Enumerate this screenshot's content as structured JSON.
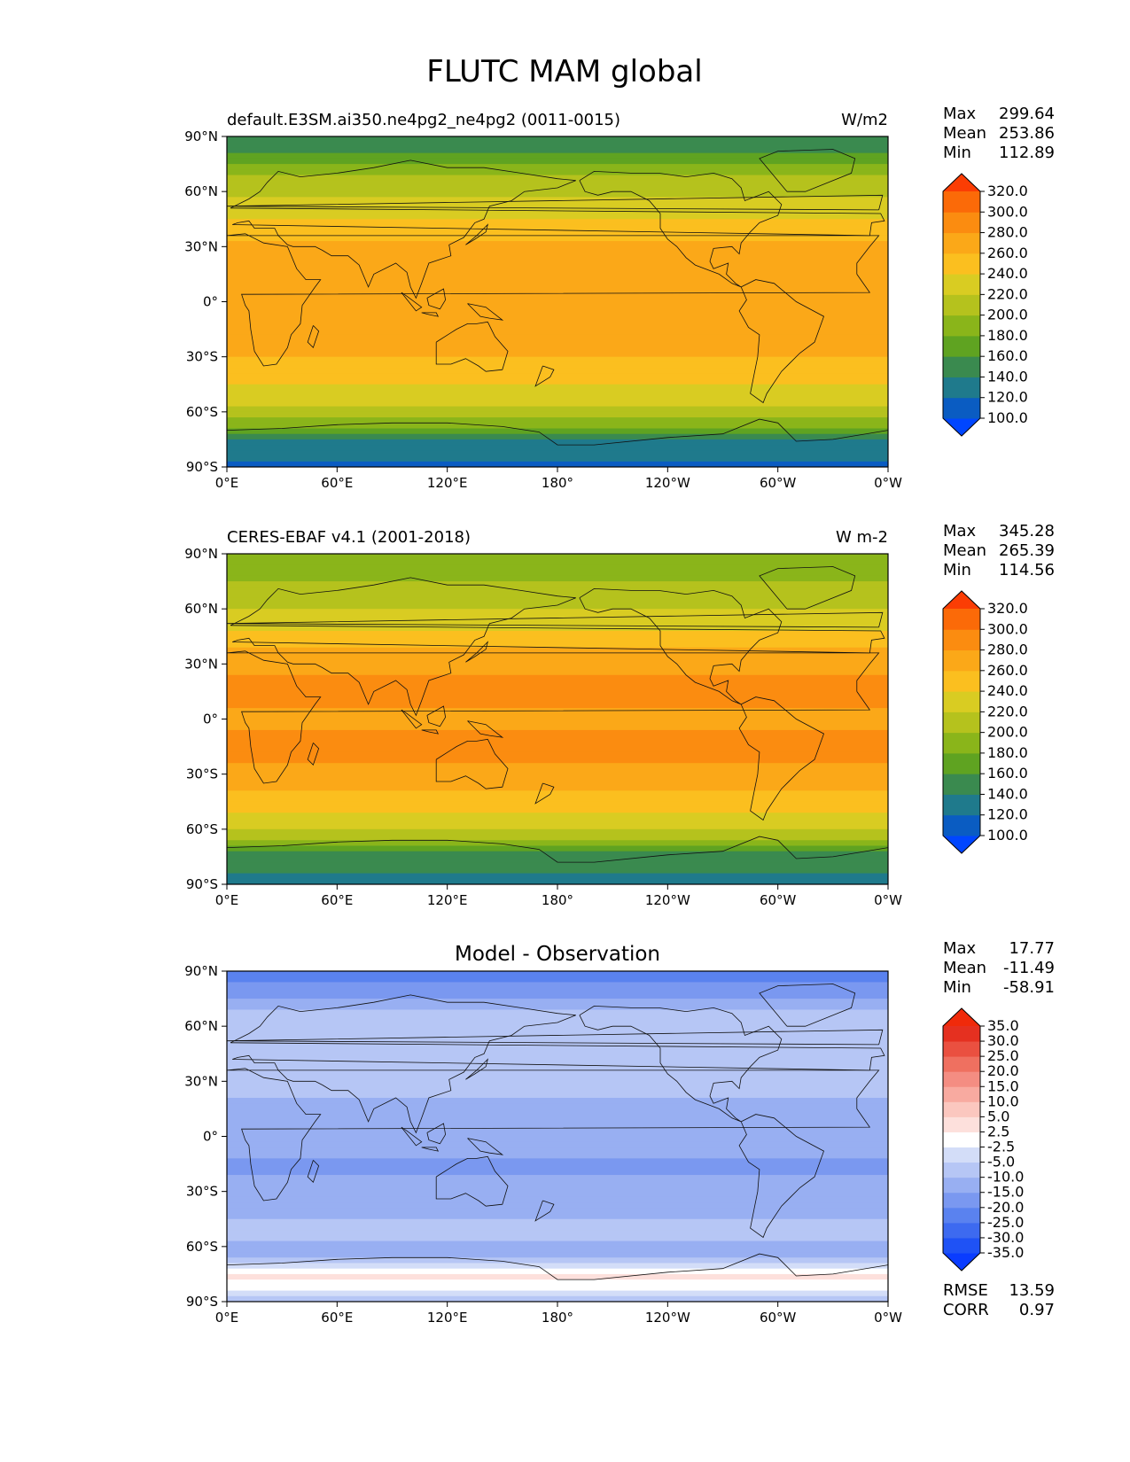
{
  "figure": {
    "title": "FLUTC MAM global"
  },
  "chart_data": [
    {
      "type": "heatmap",
      "panel": "test",
      "title_left": "default.E3SM.ai350.ne4pg2_ne4pg2 (0011-0015)",
      "title_center": "",
      "units": "W/m2",
      "stats": {
        "Max": "299.64",
        "Mean": "253.86",
        "Min": "112.89"
      },
      "xlim": [
        0,
        360
      ],
      "ylim": [
        -90,
        90
      ],
      "x_ticks": [
        "0°E",
        "60°E",
        "120°E",
        "180°",
        "120°W",
        "60°W",
        "0°W"
      ],
      "y_ticks": [
        "90°N",
        "60°N",
        "30°N",
        "0°",
        "30°S",
        "60°S",
        "90°S"
      ],
      "colorbar": {
        "levels": [
          "100.0",
          "120.0",
          "140.0",
          "160.0",
          "180.0",
          "200.0",
          "220.0",
          "240.0",
          "260.0",
          "280.0",
          "300.0",
          "320.0"
        ],
        "colors": [
          "#0046ff",
          "#0a5cc2",
          "#1f7a8c",
          "#3a8a4f",
          "#5fa321",
          "#8ab51a",
          "#b5c21d",
          "#d9cc22",
          "#fbbf1f",
          "#fba818",
          "#fb8c10",
          "#fb6a08",
          "#fb3d04"
        ]
      },
      "lat_profile": [
        {
          "lat": 90,
          "value": 150
        },
        {
          "lat": 80,
          "value": 160
        },
        {
          "lat": 70,
          "value": 195
        },
        {
          "lat": 60,
          "value": 215
        },
        {
          "lat": 45,
          "value": 240
        },
        {
          "lat": 30,
          "value": 268
        },
        {
          "lat": 15,
          "value": 272
        },
        {
          "lat": 0,
          "value": 262
        },
        {
          "lat": -15,
          "value": 268
        },
        {
          "lat": -30,
          "value": 262
        },
        {
          "lat": -45,
          "value": 240
        },
        {
          "lat": -55,
          "value": 225
        },
        {
          "lat": -65,
          "value": 195
        },
        {
          "lat": -75,
          "value": 140
        },
        {
          "lat": -90,
          "value": 112
        }
      ]
    },
    {
      "type": "heatmap",
      "panel": "reference",
      "title_left": "CERES-EBAF v4.1 (2001-2018)",
      "title_center": "",
      "units": "W m-2",
      "stats": {
        "Max": "345.28",
        "Mean": "265.39",
        "Min": "114.56"
      },
      "xlim": [
        0,
        360
      ],
      "ylim": [
        -90,
        90
      ],
      "x_ticks": [
        "0°E",
        "60°E",
        "120°E",
        "180°",
        "120°W",
        "60°W",
        "0°W"
      ],
      "y_ticks": [
        "90°N",
        "60°N",
        "30°N",
        "0°",
        "30°S",
        "60°S",
        "90°S"
      ],
      "colorbar": {
        "levels": [
          "100.0",
          "120.0",
          "140.0",
          "160.0",
          "180.0",
          "200.0",
          "220.0",
          "240.0",
          "260.0",
          "280.0",
          "300.0",
          "320.0"
        ],
        "colors": [
          "#0046ff",
          "#0a5cc2",
          "#1f7a8c",
          "#3a8a4f",
          "#5fa321",
          "#8ab51a",
          "#b5c21d",
          "#d9cc22",
          "#fbbf1f",
          "#fba818",
          "#fb8c10",
          "#fb6a08",
          "#fb3d04"
        ]
      },
      "lat_profile": [
        {
          "lat": 90,
          "value": 190
        },
        {
          "lat": 80,
          "value": 195
        },
        {
          "lat": 70,
          "value": 205
        },
        {
          "lat": 60,
          "value": 222
        },
        {
          "lat": 45,
          "value": 245
        },
        {
          "lat": 30,
          "value": 275
        },
        {
          "lat": 15,
          "value": 285
        },
        {
          "lat": 0,
          "value": 275
        },
        {
          "lat": -15,
          "value": 285
        },
        {
          "lat": -30,
          "value": 275
        },
        {
          "lat": -45,
          "value": 250
        },
        {
          "lat": -55,
          "value": 232
        },
        {
          "lat": -65,
          "value": 205
        },
        {
          "lat": -75,
          "value": 150
        },
        {
          "lat": -90,
          "value": 135
        }
      ]
    },
    {
      "type": "heatmap",
      "panel": "difference",
      "title_left": "",
      "title_center": "Model - Observation",
      "units": "",
      "stats": {
        "Max": "17.77",
        "Mean": "-11.49",
        "Min": "-58.91"
      },
      "metrics": {
        "RMSE": "13.59",
        "CORR": "0.97"
      },
      "xlim": [
        0,
        360
      ],
      "ylim": [
        -90,
        90
      ],
      "x_ticks": [
        "0°E",
        "60°E",
        "120°E",
        "180°",
        "120°W",
        "60°W",
        "0°W"
      ],
      "y_ticks": [
        "90°N",
        "60°N",
        "30°N",
        "0°",
        "30°S",
        "60°S",
        "90°S"
      ],
      "colorbar": {
        "levels": [
          "-35.0",
          "-30.0",
          "-25.0",
          "-20.0",
          "-15.0",
          "-10.0",
          "-5.0",
          "-2.5",
          "2.5",
          "5.0",
          "10.0",
          "15.0",
          "20.0",
          "25.0",
          "30.0",
          "35.0"
        ],
        "colors": [
          "#0a3cff",
          "#1f52f5",
          "#3d6af0",
          "#5a82ef",
          "#7a98f0",
          "#98aff2",
          "#b6c6f5",
          "#d3ddf8",
          "#ffffff",
          "#fde0dc",
          "#fbc7bf",
          "#f8aaa0",
          "#f48d82",
          "#ef7060",
          "#ea5040",
          "#e53020",
          "#f02a0a"
        ]
      },
      "lat_profile": [
        {
          "lat": 90,
          "value": -25
        },
        {
          "lat": 80,
          "value": -18
        },
        {
          "lat": 70,
          "value": -10
        },
        {
          "lat": 60,
          "value": -8
        },
        {
          "lat": 45,
          "value": -7
        },
        {
          "lat": 30,
          "value": -6
        },
        {
          "lat": 15,
          "value": -12
        },
        {
          "lat": 0,
          "value": -10
        },
        {
          "lat": -15,
          "value": -16
        },
        {
          "lat": -30,
          "value": -14
        },
        {
          "lat": -45,
          "value": -10
        },
        {
          "lat": -55,
          "value": -9
        },
        {
          "lat": -65,
          "value": -14
        },
        {
          "lat": -75,
          "value": 4
        },
        {
          "lat": -90,
          "value": -8
        }
      ]
    }
  ]
}
